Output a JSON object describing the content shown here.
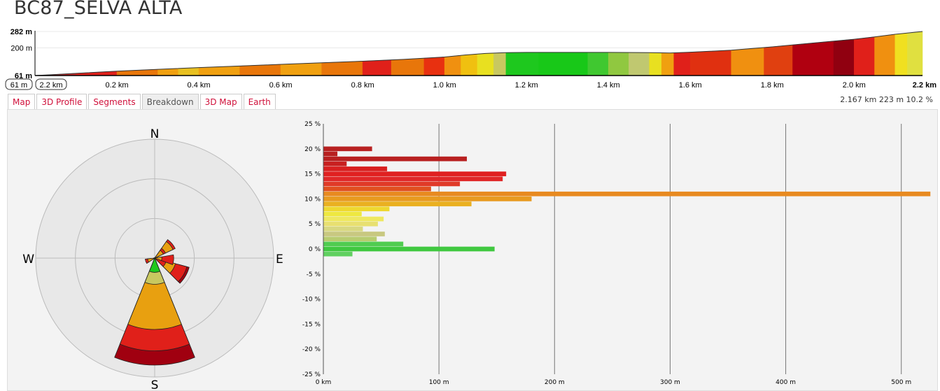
{
  "app": {
    "title": "BC87_SELVA ALTA"
  },
  "profile": {
    "y_labels": [
      "282 m",
      "200 m",
      "61 m"
    ],
    "y_values": [
      282,
      200,
      61
    ],
    "min_box": "61 m",
    "max_box": "2.2 km",
    "x_ticks": [
      "0.2 km",
      "0.4 km",
      "0.6 km",
      "0.8 km",
      "1.0 km",
      "1.2 km",
      "1.4 km",
      "1.6 km",
      "1.8 km",
      "2.0 km",
      "2.2 km"
    ],
    "x_tick_values": [
      0.2,
      0.4,
      0.6,
      0.8,
      1.0,
      1.2,
      1.4,
      1.6,
      1.8,
      2.0,
      2.2
    ],
    "x_max_km": 2.167,
    "elevation_points": [
      [
        0,
        61
      ],
      [
        0.03,
        64
      ],
      [
        0.1,
        72
      ],
      [
        0.2,
        83
      ],
      [
        0.3,
        92
      ],
      [
        0.4,
        101
      ],
      [
        0.5,
        109
      ],
      [
        0.6,
        117
      ],
      [
        0.7,
        125
      ],
      [
        0.8,
        133
      ],
      [
        0.9,
        142
      ],
      [
        1.0,
        154
      ],
      [
        1.05,
        164
      ],
      [
        1.1,
        172
      ],
      [
        1.15,
        176
      ],
      [
        1.2,
        177
      ],
      [
        1.3,
        177
      ],
      [
        1.4,
        177
      ],
      [
        1.5,
        176
      ],
      [
        1.55,
        174
      ],
      [
        1.6,
        178
      ],
      [
        1.7,
        188
      ],
      [
        1.8,
        205
      ],
      [
        1.9,
        224
      ],
      [
        2.0,
        243
      ],
      [
        2.05,
        255
      ],
      [
        2.1,
        268
      ],
      [
        2.167,
        282
      ]
    ],
    "gradient_segments": [
      [
        0,
        0.1,
        "#c62a2a"
      ],
      [
        0.1,
        0.2,
        "#e0201a"
      ],
      [
        0.2,
        0.3,
        "#e8760a"
      ],
      [
        0.3,
        0.35,
        "#f0a010"
      ],
      [
        0.35,
        0.4,
        "#e8c020"
      ],
      [
        0.4,
        0.5,
        "#f0a010"
      ],
      [
        0.5,
        0.6,
        "#e8760a"
      ],
      [
        0.6,
        0.7,
        "#f0a010"
      ],
      [
        0.7,
        0.8,
        "#e8760a"
      ],
      [
        0.8,
        0.87,
        "#e0201a"
      ],
      [
        0.87,
        0.95,
        "#e8760a"
      ],
      [
        0.95,
        1.0,
        "#e83010"
      ],
      [
        1.0,
        1.04,
        "#f09010"
      ],
      [
        1.04,
        1.08,
        "#f0c010"
      ],
      [
        1.08,
        1.12,
        "#e8e020"
      ],
      [
        1.12,
        1.15,
        "#c8c860"
      ],
      [
        1.15,
        1.23,
        "#1ec81e"
      ],
      [
        1.23,
        1.35,
        "#18c818"
      ],
      [
        1.35,
        1.4,
        "#40c830"
      ],
      [
        1.4,
        1.45,
        "#90c840"
      ],
      [
        1.45,
        1.5,
        "#c0c870"
      ],
      [
        1.5,
        1.53,
        "#e8e020"
      ],
      [
        1.53,
        1.56,
        "#f0a010"
      ],
      [
        1.56,
        1.6,
        "#e0201a"
      ],
      [
        1.6,
        1.7,
        "#e03010"
      ],
      [
        1.7,
        1.78,
        "#f09010"
      ],
      [
        1.78,
        1.85,
        "#e04010"
      ],
      [
        1.85,
        1.95,
        "#b00010"
      ],
      [
        1.95,
        2.0,
        "#900010"
      ],
      [
        2.0,
        2.05,
        "#e0201a"
      ],
      [
        2.05,
        2.1,
        "#f09010"
      ],
      [
        2.1,
        2.13,
        "#f0e020"
      ],
      [
        2.13,
        2.167,
        "#e0e040"
      ]
    ]
  },
  "tabs": [
    {
      "label": "Map",
      "active": false
    },
    {
      "label": "3D Profile",
      "active": false
    },
    {
      "label": "Segments",
      "active": false
    },
    {
      "label": "Breakdown",
      "active": true
    },
    {
      "label": "3D Map",
      "active": false
    },
    {
      "label": "Earth",
      "active": false
    }
  ],
  "summary": {
    "distance": "2.167 km",
    "elevation": "223 m",
    "grade": "10.2 %"
  },
  "compass": {
    "north": "N",
    "south": "S",
    "east": "E",
    "west": "W"
  },
  "rose_sectors": [
    {
      "bearing": 180,
      "width": 44,
      "layers": [
        [
          0.12,
          "#1ec81e"
        ],
        [
          0.22,
          "#c8c860"
        ],
        [
          0.6,
          "#e8a010"
        ],
        [
          0.78,
          "#e0201a"
        ],
        [
          0.9,
          "#a00010"
        ]
      ]
    },
    {
      "bearing": 120,
      "width": 30,
      "layers": [
        [
          0.1,
          "#e0201a"
        ],
        [
          0.18,
          "#e8a010"
        ],
        [
          0.28,
          "#e0201a"
        ],
        [
          0.3,
          "#a00010"
        ]
      ]
    },
    {
      "bearing": 95,
      "width": 30,
      "layers": [
        [
          0.06,
          "#e8a010"
        ],
        [
          0.16,
          "#e0201a"
        ]
      ]
    },
    {
      "bearing": 50,
      "width": 30,
      "layers": [
        [
          0.08,
          "#e8a010"
        ],
        [
          0.1,
          "#e0201a"
        ],
        [
          0.17,
          "#e8a010"
        ],
        [
          0.19,
          "#e0201a"
        ]
      ]
    },
    {
      "bearing": 250,
      "width": 28,
      "layers": [
        [
          0.06,
          "#e8a010"
        ],
        [
          0.08,
          "#e0201a"
        ]
      ]
    }
  ],
  "chart_data": {
    "type": "bar",
    "orientation": "horizontal",
    "title": "",
    "xlabel": "",
    "ylabel": "",
    "y_ticks": [
      "25 %",
      "20 %",
      "15 %",
      "10 %",
      "5 %",
      "0 %",
      "-5 %",
      "-10 %",
      "-15 %",
      "-20 %",
      "-25 %"
    ],
    "y_tick_values": [
      25,
      20,
      15,
      10,
      5,
      0,
      -5,
      -10,
      -15,
      -20,
      -25
    ],
    "x_ticks": [
      "0 km",
      "100 m",
      "200 m",
      "300 m",
      "400 m",
      "500 m"
    ],
    "x_tick_values": [
      0,
      100,
      200,
      300,
      400,
      500
    ],
    "xlim": [
      0,
      525
    ],
    "ylim": [
      -25,
      25
    ],
    "grid": true,
    "bars": [
      {
        "grade": 20,
        "value": 42,
        "color": "#b82020"
      },
      {
        "grade": 19,
        "value": 12,
        "color": "#b82020"
      },
      {
        "grade": 18,
        "value": 124,
        "color": "#b82020"
      },
      {
        "grade": 17,
        "value": 20,
        "color": "#c82020"
      },
      {
        "grade": 16,
        "value": 55,
        "color": "#d82020"
      },
      {
        "grade": 15,
        "value": 158,
        "color": "#e02020"
      },
      {
        "grade": 14,
        "value": 155,
        "color": "#e02828"
      },
      {
        "grade": 13,
        "value": 118,
        "color": "#e03a28"
      },
      {
        "grade": 12,
        "value": 93,
        "color": "#e05020"
      },
      {
        "grade": 11,
        "value": 525,
        "color": "#e88a20"
      },
      {
        "grade": 10,
        "value": 180,
        "color": "#e89a20"
      },
      {
        "grade": 9,
        "value": 128,
        "color": "#eab020"
      },
      {
        "grade": 8,
        "value": 57,
        "color": "#eed830"
      },
      {
        "grade": 7,
        "value": 33,
        "color": "#eee840"
      },
      {
        "grade": 6,
        "value": 52,
        "color": "#eee860"
      },
      {
        "grade": 5,
        "value": 47,
        "color": "#e8e070"
      },
      {
        "grade": 4,
        "value": 34,
        "color": "#d8d880"
      },
      {
        "grade": 3,
        "value": 53,
        "color": "#c8c880"
      },
      {
        "grade": 2,
        "value": 46,
        "color": "#b8cc70"
      },
      {
        "grade": 1,
        "value": 69,
        "color": "#50cc50"
      },
      {
        "grade": 0,
        "value": 148,
        "color": "#40c840"
      },
      {
        "grade": -1,
        "value": 25,
        "color": "#60d060"
      }
    ]
  }
}
